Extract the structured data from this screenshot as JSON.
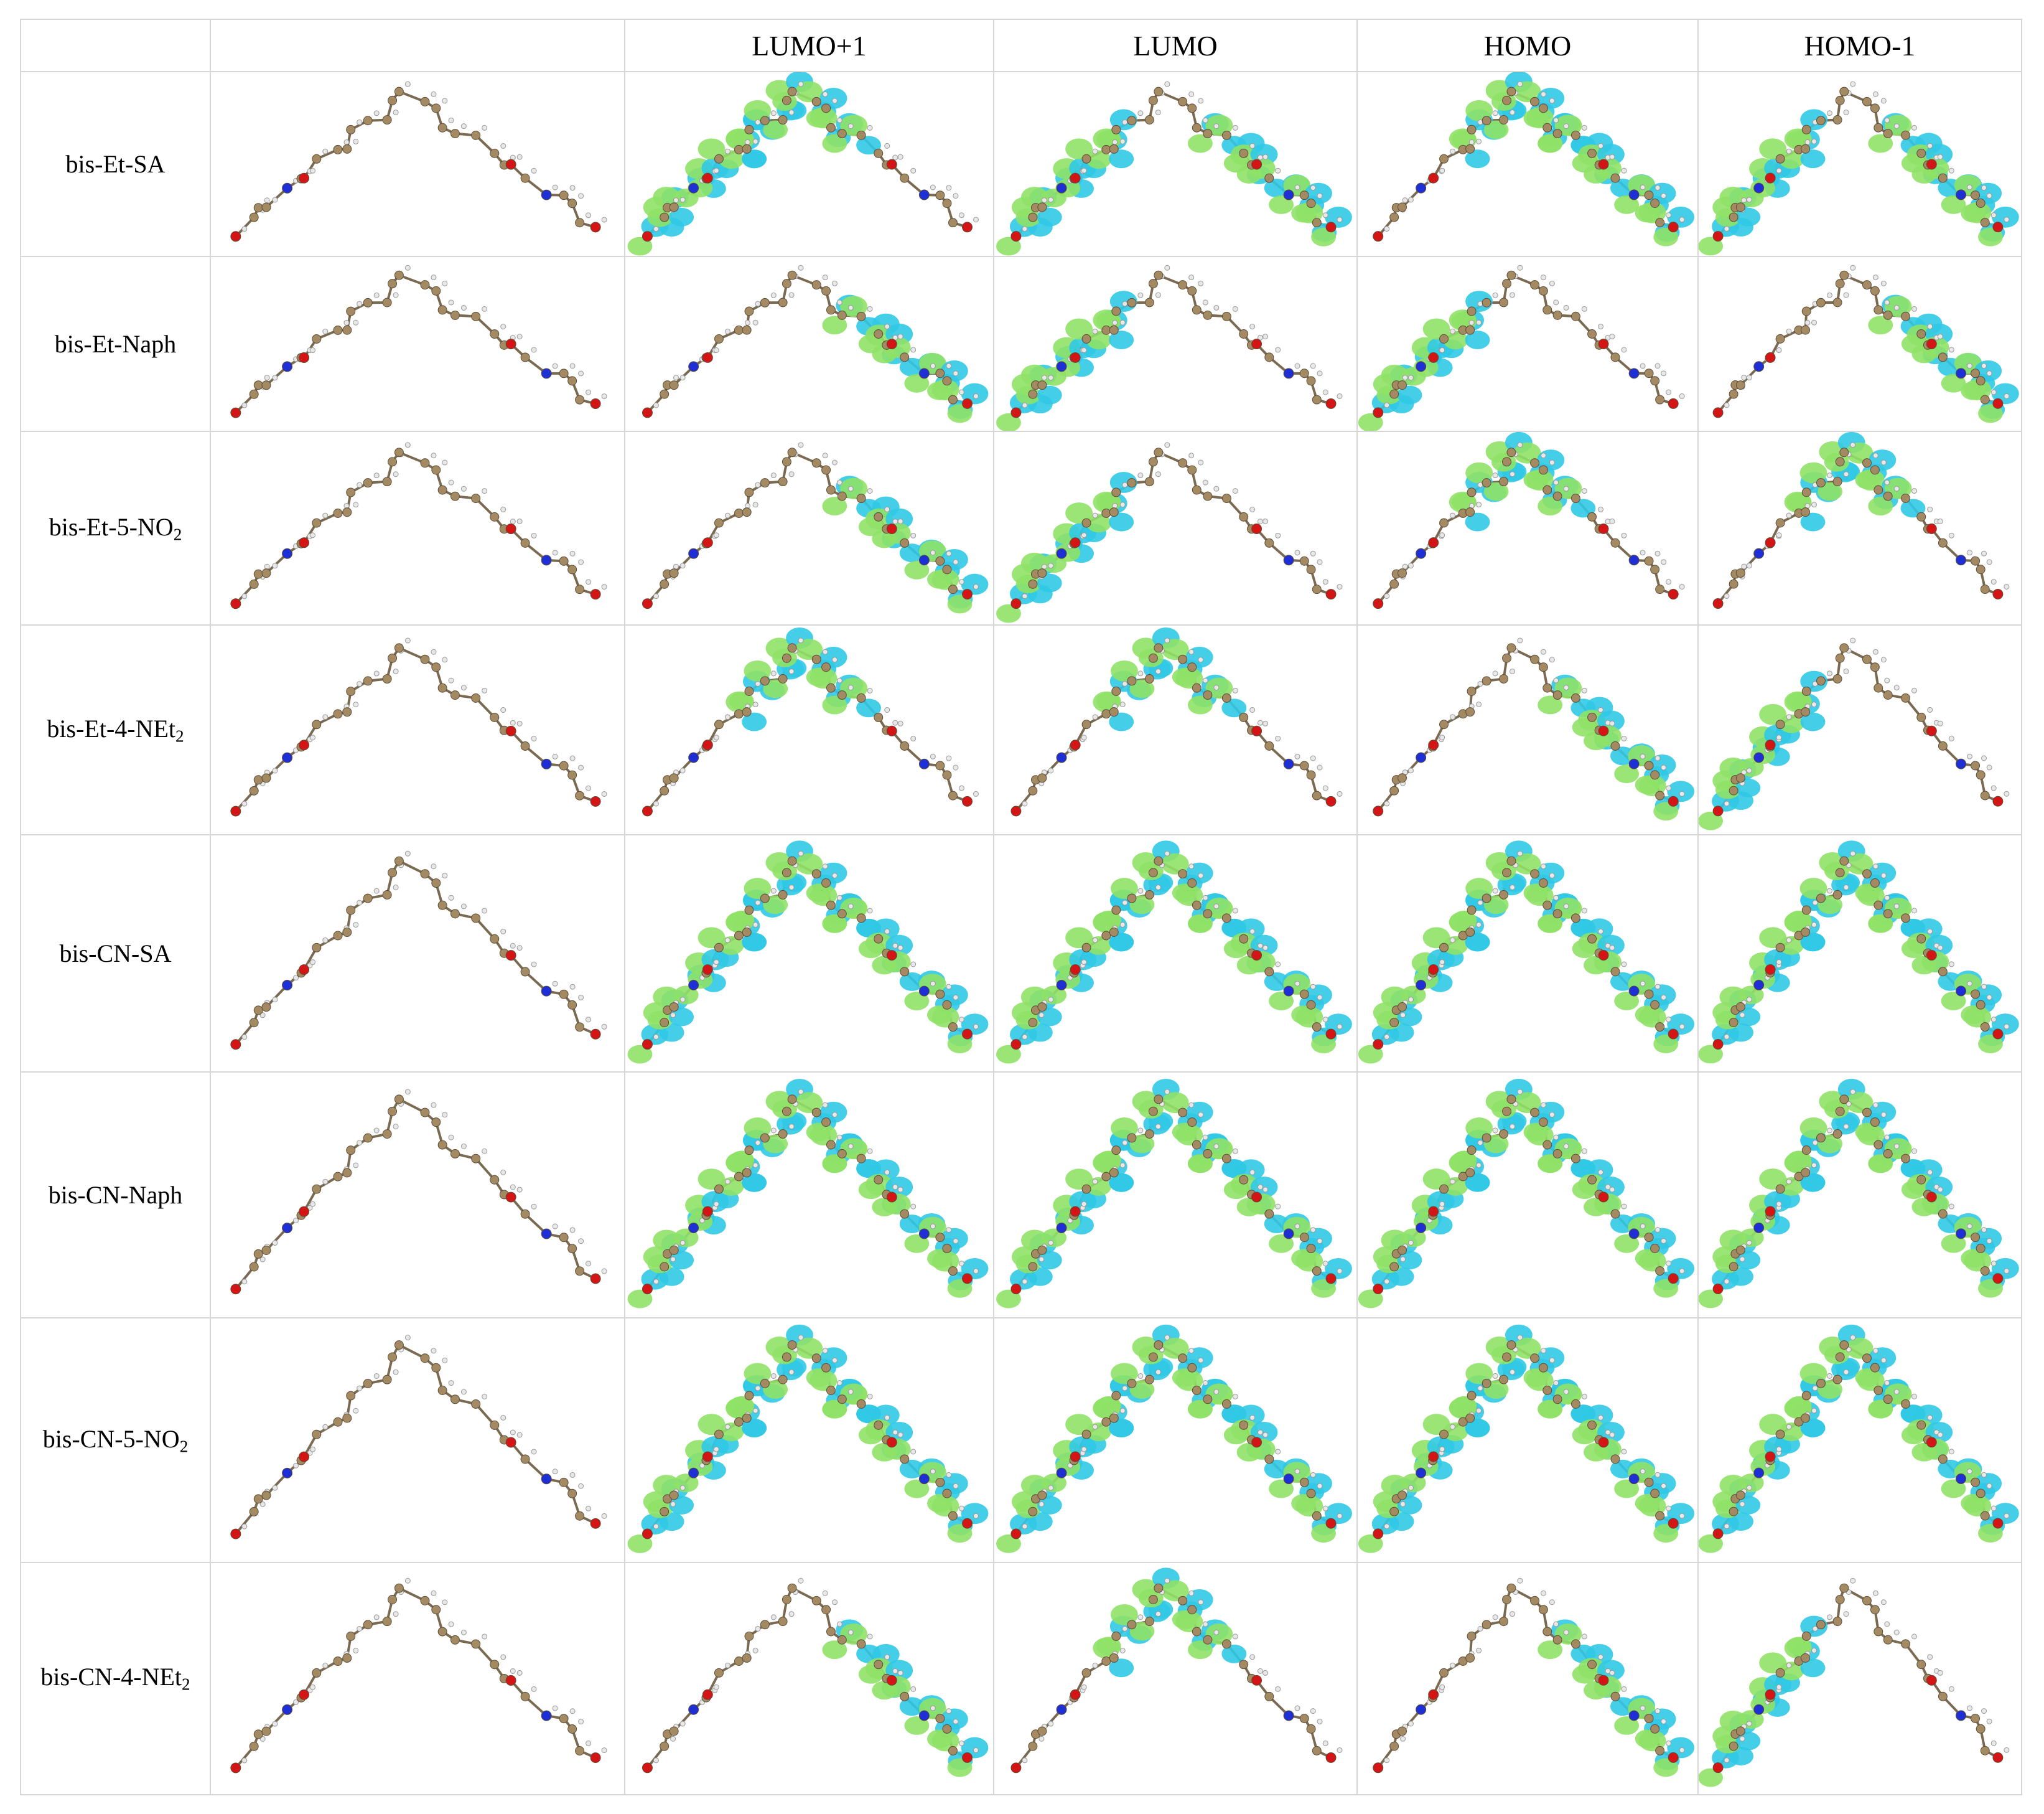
{
  "header": {
    "corner_label": "",
    "structure_label": "",
    "columns": [
      "LUMO+1",
      "LUMO",
      "HOMO",
      "HOMO-1"
    ]
  },
  "rows": [
    {
      "name": "bis-Et-SA",
      "name_main": "bis-Et-SA",
      "name_sub": "",
      "lobes": [
        [
          0,
          1
        ],
        [
          0,
          2
        ],
        [
          1,
          2
        ],
        [
          0,
          2
        ]
      ]
    },
    {
      "name": "bis-Et-Naph",
      "name_main": "bis-Et-Naph",
      "name_sub": "",
      "lobes": [
        [
          2
        ],
        [
          0
        ],
        [
          0
        ],
        [
          2
        ]
      ]
    },
    {
      "name": "bis-Et-5-NO2",
      "name_main": "bis-Et-5-NO",
      "name_sub": "2",
      "lobes": [
        [
          2
        ],
        [
          0
        ],
        [
          1
        ],
        [
          1
        ]
      ]
    },
    {
      "name": "bis-Et-4-NEt2",
      "name_main": "bis-Et-4-NEt",
      "name_sub": "2",
      "lobes": [
        [
          1
        ],
        [
          1
        ],
        [
          2
        ],
        [
          0
        ]
      ]
    },
    {
      "name": "bis-CN-SA",
      "name_main": "bis-CN-SA",
      "name_sub": "",
      "lobes": [
        [
          0,
          1,
          2
        ],
        [
          0,
          1,
          2
        ],
        [
          0,
          1,
          2
        ],
        [
          0,
          1,
          2
        ]
      ]
    },
    {
      "name": "bis-CN-Naph",
      "name_main": "bis-CN-Naph",
      "name_sub": "",
      "lobes": [
        [
          0,
          1,
          2
        ],
        [
          0,
          1,
          2
        ],
        [
          0,
          1,
          2
        ],
        [
          0,
          1,
          2
        ]
      ]
    },
    {
      "name": "bis-CN-5-NO2",
      "name_main": "bis-CN-5-NO",
      "name_sub": "2",
      "lobes": [
        [
          0,
          1,
          2
        ],
        [
          0,
          1,
          2
        ],
        [
          0,
          1,
          2
        ],
        [
          0,
          1,
          2
        ]
      ]
    },
    {
      "name": "bis-CN-4-NEt2",
      "name_main": "bis-CN-4-NEt",
      "name_sub": "2",
      "lobes": [
        [
          2
        ],
        [
          1
        ],
        [
          2
        ],
        [
          0
        ]
      ]
    }
  ],
  "colors": {
    "carbon_atom": "#a48a63",
    "hydrogen_atom": "#e8e8e8",
    "nitrogen_atom": "#1f2fd6",
    "oxygen_atom": "#d41515",
    "orbital_positive": "#30c9e6",
    "orbital_negative": "#8fe267",
    "grid_line": "#d6d6d6"
  }
}
